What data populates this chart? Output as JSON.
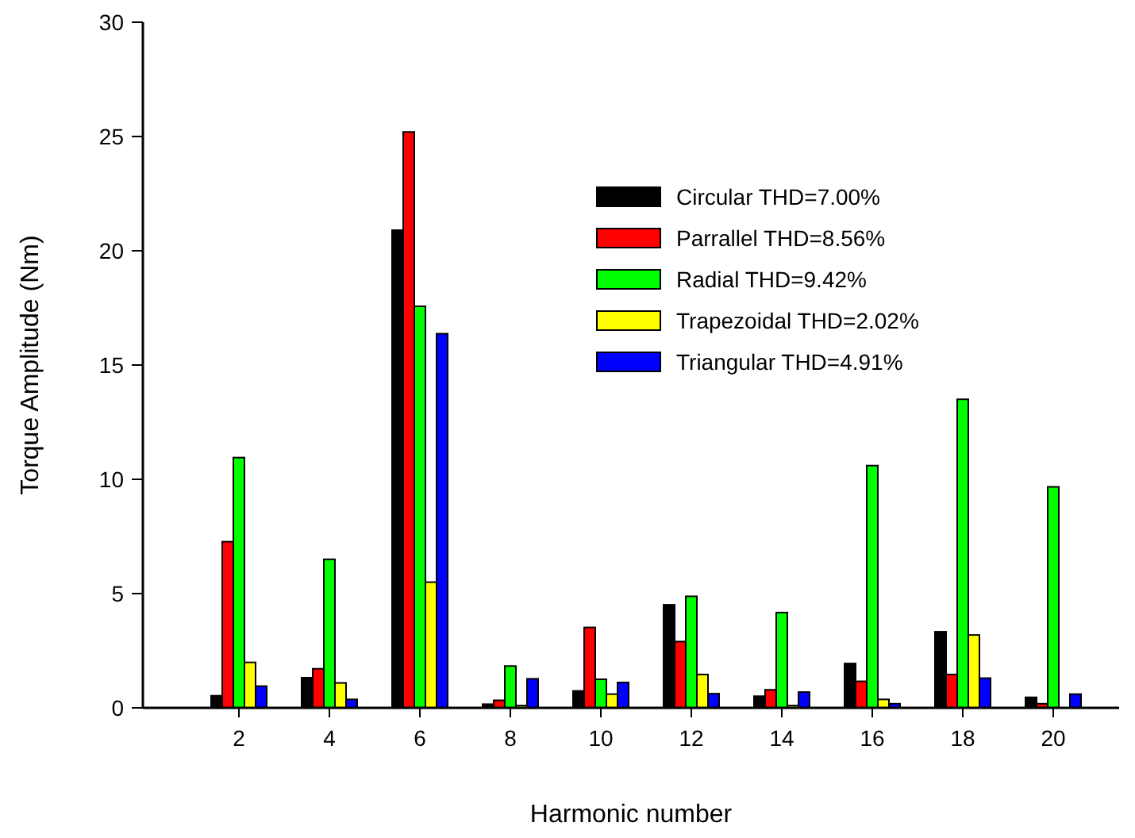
{
  "chart_data": {
    "type": "bar",
    "categories": [
      "2",
      "4",
      "6",
      "8",
      "10",
      "12",
      "14",
      "16",
      "18",
      "20"
    ],
    "series": [
      {
        "name": "Circular THD=7.00%",
        "color": "#000000",
        "values": [
          0.53,
          1.32,
          20.9,
          0.16,
          0.74,
          4.51,
          0.51,
          1.94,
          3.33,
          0.46
        ]
      },
      {
        "name": "Parrallel THD=8.56%",
        "color": "#ff0000",
        "values": [
          7.27,
          1.71,
          25.2,
          0.33,
          3.52,
          2.9,
          0.79,
          1.16,
          1.46,
          0.18
        ]
      },
      {
        "name": "Radial THD=9.42%",
        "color": "#00ff00",
        "values": [
          10.95,
          6.5,
          17.57,
          1.83,
          1.25,
          4.88,
          4.17,
          10.6,
          13.5,
          9.67
        ]
      },
      {
        "name": "Trapezoidal THD=2.02%",
        "color": "#ffff00",
        "values": [
          1.99,
          1.09,
          5.5,
          0.1,
          0.6,
          1.46,
          0.1,
          0.37,
          3.19,
          0
        ]
      },
      {
        "name": "Triangular THD=4.91%",
        "color": "#0000ff",
        "values": [
          0.95,
          0.37,
          16.37,
          1.27,
          1.11,
          0.62,
          0.69,
          0.18,
          1.3,
          0.6
        ]
      }
    ],
    "xlabel": "Harmonic number",
    "ylabel": "Torque Amplitude (Nm)",
    "ylim": [
      0,
      30
    ],
    "yticks": [
      0,
      5,
      10,
      15,
      20,
      25,
      30
    ],
    "legend": "top right"
  }
}
